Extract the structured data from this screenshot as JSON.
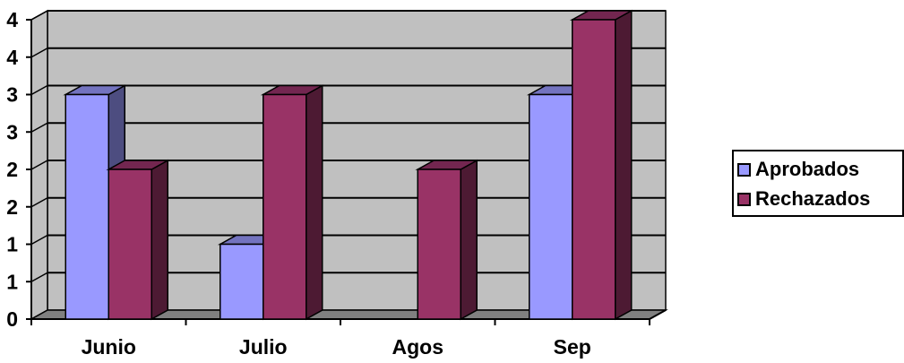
{
  "chart_data": {
    "type": "bar",
    "categories": [
      "Junio",
      "Julio",
      "Agos",
      "Sep"
    ],
    "series": [
      {
        "name": "Aprobados",
        "values": [
          3,
          1,
          0,
          3
        ],
        "color": "#9999ff",
        "side_color": "#4d4d80",
        "top_color": "#7373bf"
      },
      {
        "name": "Rechazados",
        "values": [
          2,
          3,
          2,
          4
        ],
        "color": "#993366",
        "side_color": "#4d1a33",
        "top_color": "#732650"
      }
    ],
    "ylim": [
      0,
      4
    ],
    "y_tick_labels": [
      "0",
      "1",
      "1",
      "2",
      "2",
      "3",
      "3",
      "4",
      "4"
    ],
    "grid": true,
    "legend_position": "right",
    "wall_color": "#c0c0c0",
    "floor_color": "#808080"
  }
}
